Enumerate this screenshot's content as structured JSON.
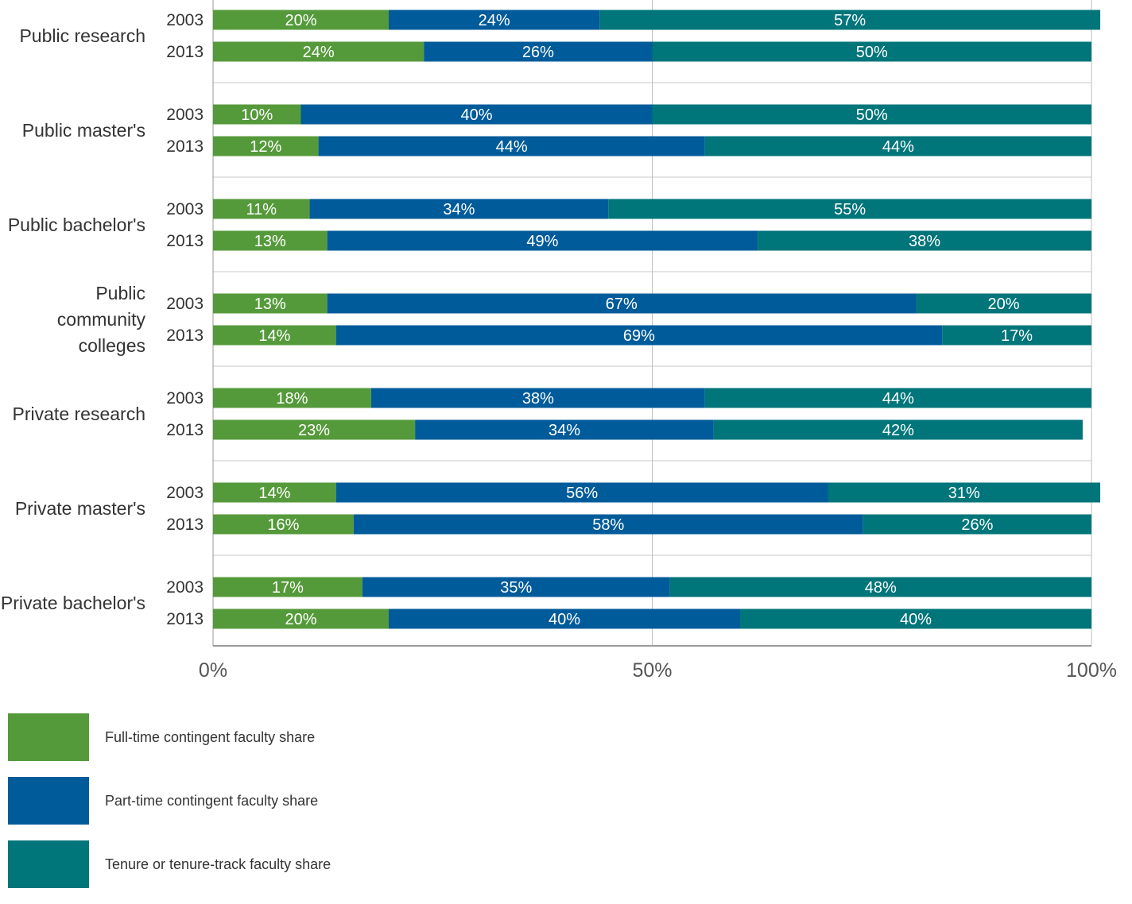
{
  "chart_data": {
    "type": "bar",
    "orientation": "horizontal",
    "stacked": true,
    "percent_stacked": true,
    "categories": [
      {
        "name": [
          "Public research"
        ],
        "years": [
          "2003",
          "2013"
        ]
      },
      {
        "name": [
          "Public master's"
        ],
        "years": [
          "2003",
          "2013"
        ]
      },
      {
        "name": [
          "Public bachelor's"
        ],
        "years": [
          "2003",
          "2013"
        ]
      },
      {
        "name": [
          "Public",
          "community",
          "colleges"
        ],
        "years": [
          "2003",
          "2013"
        ]
      },
      {
        "name": [
          "Private research"
        ],
        "years": [
          "2003",
          "2013"
        ]
      },
      {
        "name": [
          "Private master's"
        ],
        "years": [
          "2003",
          "2013"
        ]
      },
      {
        "name": [
          "Private bachelor's"
        ],
        "years": [
          "2003",
          "2013"
        ]
      }
    ],
    "series": [
      {
        "name": "Full-time contingent faculty share",
        "color": "#559a3a",
        "values": [
          [
            20,
            24
          ],
          [
            10,
            12
          ],
          [
            11,
            13
          ],
          [
            13,
            14
          ],
          [
            18,
            23
          ],
          [
            14,
            16
          ],
          [
            17,
            20
          ]
        ]
      },
      {
        "name": "Part-time contingent faculty share",
        "color": "#005b9a",
        "values": [
          [
            24,
            26
          ],
          [
            40,
            44
          ],
          [
            34,
            49
          ],
          [
            67,
            69
          ],
          [
            38,
            34
          ],
          [
            56,
            58
          ],
          [
            35,
            40
          ]
        ]
      },
      {
        "name": "Tenure or tenure-track faculty share",
        "color": "#00757a",
        "values": [
          [
            57,
            50
          ],
          [
            50,
            44
          ],
          [
            55,
            38
          ],
          [
            20,
            17
          ],
          [
            44,
            42
          ],
          [
            31,
            26
          ],
          [
            48,
            40
          ]
        ]
      }
    ],
    "xlim": [
      0,
      100
    ],
    "xticks": [
      "0%",
      "50%",
      "100%"
    ],
    "grid": true,
    "legend_position": "bottom-left"
  }
}
